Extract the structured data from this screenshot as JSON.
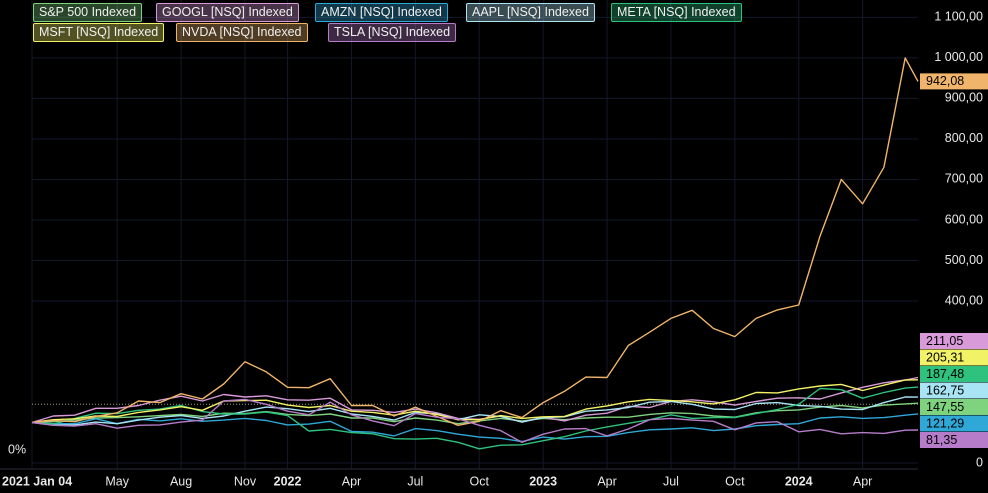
{
  "chart_data": {
    "type": "line",
    "annotations": [
      "0%"
    ],
    "reference_line": 145,
    "x": [
      0,
      1,
      2,
      3,
      4,
      5,
      6,
      7,
      8,
      9,
      10,
      11,
      12,
      13,
      14,
      15,
      16,
      17,
      18,
      19,
      20,
      21,
      22,
      23,
      24,
      25,
      26,
      27,
      28,
      29,
      30,
      31,
      32,
      33,
      34,
      35,
      36,
      37,
      38,
      39,
      40,
      41,
      41.6
    ],
    "xlim": [
      0,
      41.6
    ],
    "xticks": [
      {
        "value": 0,
        "label": "2021 Jan 04"
      },
      {
        "value": 4,
        "label": "May"
      },
      {
        "value": 7,
        "label": "Aug"
      },
      {
        "value": 10,
        "label": "Nov"
      },
      {
        "value": 12,
        "label": "2022"
      },
      {
        "value": 15,
        "label": "Apr"
      },
      {
        "value": 18,
        "label": "Jul"
      },
      {
        "value": 21,
        "label": "Oct"
      },
      {
        "value": 24,
        "label": "2023"
      },
      {
        "value": 27,
        "label": "Apr"
      },
      {
        "value": 30,
        "label": "Jul"
      },
      {
        "value": 33,
        "label": "Oct"
      },
      {
        "value": 36,
        "label": "2024"
      },
      {
        "value": 39,
        "label": "Apr"
      }
    ],
    "ylim": [
      0,
      1143
    ],
    "yticks": [
      0,
      {
        "value": 400,
        "label": "400,00"
      },
      {
        "value": 500,
        "label": "500,00"
      },
      {
        "value": 600,
        "label": "600,00"
      },
      {
        "value": 700,
        "label": "700,00"
      },
      {
        "value": 800,
        "label": "800,00"
      },
      {
        "value": 900,
        "label": "900,00"
      },
      {
        "value": 1000,
        "label": "1 000,00"
      },
      {
        "value": 1100,
        "label": "1 100,00"
      }
    ],
    "grid": true,
    "series": [
      {
        "name": "S&P 500 Indexed",
        "color": "#7fd37f",
        "values": [
          100,
          102,
          106,
          111,
          112,
          114,
          117,
          120,
          115,
          123,
          122,
          127,
          120,
          117,
          121,
          111,
          111,
          102,
          111,
          106,
          97,
          104,
          110,
          104,
          110,
          107,
          111,
          113,
          113,
          120,
          124,
          122,
          116,
          113,
          124,
          129,
          131,
          138,
          142,
          136,
          143,
          146,
          147.55
        ],
        "value_labels": [
          null,
          null,
          null,
          null,
          null,
          null,
          null,
          null,
          null,
          null,
          null,
          null,
          null,
          null,
          null,
          null,
          null,
          null,
          null,
          null,
          null,
          null,
          null,
          null,
          null,
          null,
          null,
          null,
          null,
          null,
          null,
          null,
          null,
          null,
          null,
          null,
          null,
          null,
          null,
          null,
          null,
          null,
          "147,55"
        ]
      },
      {
        "name": "GOOGL [NSQ] Indexed",
        "color": "#d89ad8",
        "values": [
          100,
          116,
          118,
          135,
          135,
          142,
          155,
          165,
          153,
          169,
          163,
          166,
          156,
          155,
          160,
          131,
          130,
          125,
          133,
          124,
          110,
          108,
          116,
          101,
          113,
          104,
          118,
          123,
          140,
          137,
          152,
          156,
          151,
          143,
          152,
          160,
          161,
          158,
          173,
          187,
          198,
          205,
          211.05
        ],
        "value_labels": [
          null,
          null,
          null,
          null,
          null,
          null,
          null,
          null,
          null,
          null,
          null,
          null,
          null,
          null,
          null,
          null,
          null,
          null,
          null,
          null,
          null,
          null,
          null,
          null,
          null,
          null,
          null,
          null,
          null,
          null,
          null,
          null,
          null,
          null,
          null,
          null,
          null,
          null,
          null,
          null,
          null,
          null,
          "211,05"
        ]
      },
      {
        "name": "AMZN [NSQ] Indexed",
        "color": "#2fa8d8",
        "values": [
          100,
          97,
          97,
          109,
          97,
          108,
          104,
          109,
          103,
          106,
          110,
          105,
          94,
          96,
          103,
          78,
          76,
          67,
          85,
          80,
          71,
          64,
          61,
          53,
          64,
          59,
          65,
          66,
          75,
          82,
          84,
          87,
          80,
          84,
          92,
          95,
          97,
          111,
          114,
          110,
          112,
          118,
          121.29
        ],
        "value_labels": [
          null,
          null,
          null,
          null,
          null,
          null,
          null,
          null,
          null,
          null,
          null,
          null,
          null,
          null,
          null,
          null,
          null,
          null,
          null,
          null,
          null,
          null,
          null,
          null,
          null,
          null,
          null,
          null,
          null,
          null,
          null,
          null,
          null,
          null,
          null,
          null,
          null,
          null,
          null,
          null,
          null,
          null,
          "121,29"
        ]
      },
      {
        "name": "AAPL [NSQ] Indexed",
        "color": "#a8e4f4",
        "values": [
          100,
          94,
          94,
          101,
          97,
          106,
          113,
          117,
          110,
          116,
          128,
          138,
          134,
          127,
          135,
          121,
          115,
          106,
          125,
          121,
          107,
          119,
          115,
          101,
          112,
          114,
          128,
          131,
          137,
          150,
          152,
          145,
          133,
          132,
          147,
          149,
          142,
          140,
          133,
          132,
          149,
          163,
          162.75
        ],
        "value_labels": [
          null,
          null,
          null,
          null,
          null,
          null,
          null,
          null,
          null,
          null,
          null,
          null,
          null,
          null,
          null,
          null,
          null,
          null,
          null,
          null,
          null,
          null,
          null,
          null,
          null,
          null,
          null,
          null,
          null,
          null,
          null,
          null,
          null,
          null,
          null,
          null,
          null,
          null,
          null,
          null,
          null,
          null,
          "162,75"
        ]
      },
      {
        "name": "META [NSQ] Indexed",
        "color": "#2ec27e",
        "values": [
          100,
          96,
          110,
          123,
          122,
          130,
          133,
          142,
          127,
          121,
          121,
          126,
          117,
          79,
          83,
          75,
          72,
          60,
          59,
          61,
          51,
          35,
          44,
          45,
          55,
          65,
          79,
          89,
          98,
          107,
          119,
          110,
          112,
          112,
          122,
          132,
          145,
          184,
          181,
          160,
          174,
          185,
          187.48
        ],
        "value_labels": [
          null,
          null,
          null,
          null,
          null,
          null,
          null,
          null,
          null,
          null,
          null,
          null,
          null,
          null,
          null,
          null,
          null,
          null,
          null,
          null,
          null,
          null,
          null,
          null,
          null,
          null,
          null,
          null,
          null,
          null,
          null,
          null,
          null,
          null,
          null,
          null,
          null,
          null,
          null,
          null,
          null,
          null,
          "187,48"
        ]
      },
      {
        "name": "MSFT [NSQ] Indexed",
        "color": "#f2f266",
        "values": [
          100,
          107,
          109,
          116,
          115,
          125,
          131,
          139,
          130,
          153,
          154,
          155,
          143,
          137,
          142,
          128,
          125,
          118,
          128,
          120,
          107,
          107,
          117,
          110,
          114,
          115,
          133,
          141,
          151,
          157,
          154,
          151,
          146,
          156,
          174,
          173,
          183,
          190,
          194,
          179,
          192,
          205,
          205.31
        ],
        "value_labels": [
          null,
          null,
          null,
          null,
          null,
          null,
          null,
          null,
          null,
          null,
          null,
          null,
          null,
          null,
          null,
          null,
          null,
          null,
          null,
          null,
          null,
          null,
          null,
          null,
          null,
          null,
          null,
          null,
          null,
          null,
          null,
          null,
          null,
          null,
          null,
          null,
          null,
          null,
          null,
          null,
          null,
          null,
          "205,31"
        ]
      },
      {
        "name": "NVDA [NSQ] Indexed",
        "color": "#f0b56a",
        "values": [
          100,
          105,
          102,
          115,
          124,
          153,
          149,
          171,
          158,
          195,
          250,
          225,
          187,
          186,
          208,
          142,
          142,
          116,
          138,
          115,
          93,
          103,
          129,
          112,
          149,
          177,
          212,
          211,
          290,
          323,
          357,
          377,
          332,
          312,
          357,
          378,
          390,
          560,
          700,
          640,
          730,
          1000,
          942.08
        ],
        "value_labels": [
          null,
          null,
          null,
          null,
          null,
          null,
          null,
          null,
          null,
          null,
          null,
          null,
          null,
          null,
          null,
          null,
          null,
          null,
          null,
          null,
          null,
          null,
          null,
          null,
          null,
          null,
          null,
          null,
          null,
          null,
          null,
          null,
          null,
          null,
          null,
          null,
          null,
          null,
          null,
          null,
          null,
          null,
          "942,08"
        ]
      },
      {
        "name": "TSLA [NSQ] Indexed",
        "color": "#b77cc9",
        "values": [
          100,
          93,
          91,
          97,
          86,
          93,
          94,
          101,
          106,
          153,
          157,
          145,
          128,
          119,
          150,
          119,
          104,
          92,
          122,
          113,
          109,
          93,
          80,
          51,
          71,
          84,
          85,
          67,
          84,
          107,
          110,
          106,
          103,
          82,
          99,
          102,
          77,
          83,
          72,
          75,
          73,
          81,
          81.35
        ],
        "value_labels": [
          null,
          null,
          null,
          null,
          null,
          null,
          null,
          null,
          null,
          null,
          null,
          null,
          null,
          null,
          null,
          null,
          null,
          null,
          null,
          null,
          null,
          null,
          null,
          null,
          null,
          null,
          null,
          null,
          null,
          null,
          null,
          null,
          null,
          null,
          null,
          null,
          null,
          null,
          null,
          null,
          null,
          null,
          "81,35"
        ]
      }
    ]
  }
}
